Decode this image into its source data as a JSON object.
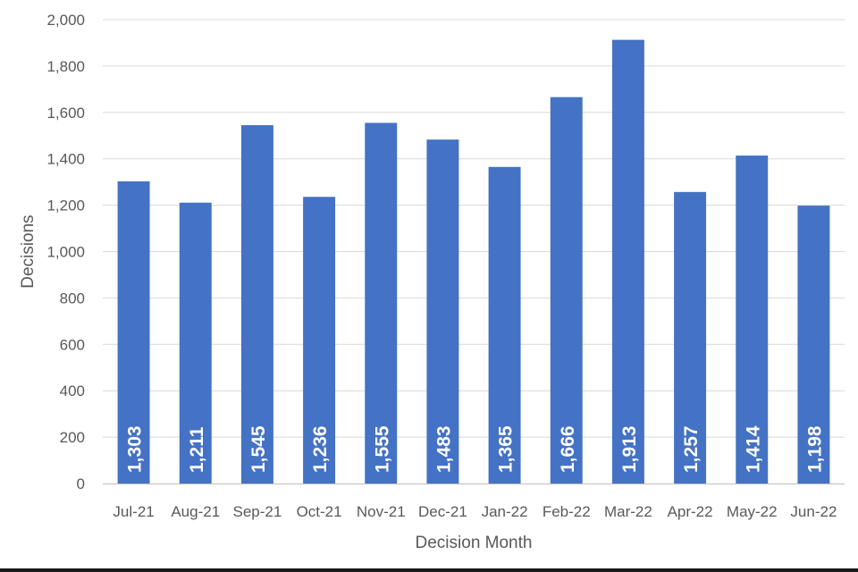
{
  "chart_data": {
    "type": "bar",
    "title": "",
    "xlabel": "Decision Month",
    "ylabel": "Decisions",
    "categories": [
      "Jul-21",
      "Aug-21",
      "Sep-21",
      "Oct-21",
      "Nov-21",
      "Dec-21",
      "Jan-22",
      "Feb-22",
      "Mar-22",
      "Apr-22",
      "May-22",
      "Jun-22"
    ],
    "values": [
      1303,
      1211,
      1545,
      1236,
      1555,
      1483,
      1365,
      1666,
      1913,
      1257,
      1414,
      1198
    ],
    "data_labels": [
      "1,303",
      "1,211",
      "1,545",
      "1,236",
      "1,555",
      "1,483",
      "1,365",
      "1,666",
      "1,913",
      "1,257",
      "1,414",
      "1,198"
    ],
    "ylim": [
      0,
      2000
    ],
    "yticks": [
      0,
      200,
      400,
      600,
      800,
      1000,
      1200,
      1400,
      1600,
      1800,
      2000
    ],
    "ytick_labels": [
      "0",
      "200",
      "400",
      "600",
      "800",
      "1,000",
      "1,200",
      "1,400",
      "1,600",
      "1,800",
      "2,000"
    ],
    "grid": true,
    "legend": "none",
    "bar_color": "#4472C4",
    "grid_color": "#D9D9D9"
  }
}
